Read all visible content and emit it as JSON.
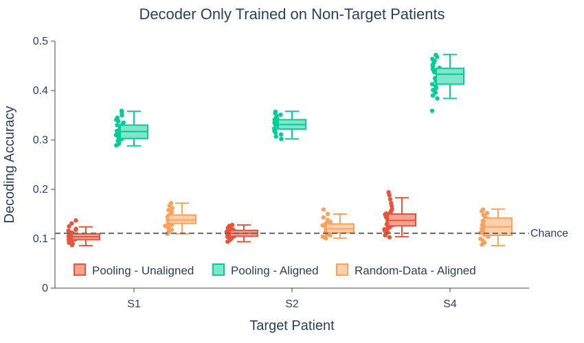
{
  "chart_data": {
    "type": "box",
    "title": "Decoder Only Trained on Non-Target Patients",
    "xlabel": "Target Patient",
    "ylabel": "Decoding Accuracy",
    "categories": [
      "S1",
      "S2",
      "S4"
    ],
    "ylim": [
      0,
      0.5
    ],
    "yticks": [
      "0",
      "0.1",
      "0.2",
      "0.3",
      "0.4",
      "0.5"
    ],
    "grid": false,
    "legend_position": "bottom-left inside, horizontal",
    "series": [
      {
        "name": "Pooling - Unaligned",
        "color": "#e8533a",
        "fill": "#f3a394",
        "boxes": [
          {
            "min": 0.086,
            "q1": 0.098,
            "median": 0.104,
            "q3": 0.11,
            "max": 0.124
          },
          {
            "min": 0.094,
            "q1": 0.105,
            "median": 0.111,
            "q3": 0.117,
            "max": 0.128
          },
          {
            "min": 0.104,
            "q1": 0.126,
            "median": 0.137,
            "q3": 0.15,
            "max": 0.183
          }
        ],
        "points": [
          [
            0.087,
            0.09,
            0.092,
            0.094,
            0.095,
            0.097,
            0.098,
            0.099,
            0.1,
            0.101,
            0.102,
            0.103,
            0.104,
            0.105,
            0.106,
            0.107,
            0.108,
            0.109,
            0.11,
            0.112,
            0.114,
            0.116,
            0.118,
            0.12,
            0.125,
            0.131,
            0.137
          ],
          [
            0.094,
            0.097,
            0.099,
            0.101,
            0.103,
            0.104,
            0.105,
            0.106,
            0.107,
            0.108,
            0.109,
            0.11,
            0.111,
            0.112,
            0.113,
            0.114,
            0.115,
            0.116,
            0.118,
            0.12,
            0.122,
            0.124,
            0.126,
            0.128
          ],
          [
            0.103,
            0.107,
            0.11,
            0.113,
            0.116,
            0.119,
            0.121,
            0.123,
            0.125,
            0.127,
            0.129,
            0.131,
            0.133,
            0.135,
            0.137,
            0.139,
            0.141,
            0.143,
            0.145,
            0.147,
            0.149,
            0.151,
            0.153,
            0.156,
            0.16,
            0.166,
            0.172,
            0.18,
            0.188,
            0.194
          ]
        ]
      },
      {
        "name": "Pooling - Aligned",
        "color": "#00cc96",
        "fill": "#80e5ca",
        "boxes": [
          {
            "min": 0.288,
            "q1": 0.303,
            "median": 0.317,
            "q3": 0.33,
            "max": 0.358
          },
          {
            "min": 0.302,
            "q1": 0.322,
            "median": 0.331,
            "q3": 0.341,
            "max": 0.358
          },
          {
            "min": 0.384,
            "q1": 0.413,
            "median": 0.433,
            "q3": 0.445,
            "max": 0.473
          }
        ],
        "points": [
          [
            0.289,
            0.292,
            0.295,
            0.298,
            0.3,
            0.302,
            0.304,
            0.306,
            0.308,
            0.31,
            0.312,
            0.314,
            0.316,
            0.318,
            0.32,
            0.322,
            0.324,
            0.326,
            0.328,
            0.33,
            0.332,
            0.335,
            0.338,
            0.341,
            0.345,
            0.35,
            0.355,
            0.359
          ],
          [
            0.302,
            0.307,
            0.311,
            0.315,
            0.318,
            0.321,
            0.323,
            0.325,
            0.327,
            0.329,
            0.331,
            0.333,
            0.335,
            0.337,
            0.339,
            0.341,
            0.343,
            0.345,
            0.348,
            0.351,
            0.354,
            0.357
          ],
          [
            0.359,
            0.384,
            0.39,
            0.396,
            0.401,
            0.405,
            0.409,
            0.413,
            0.416,
            0.419,
            0.422,
            0.425,
            0.428,
            0.431,
            0.434,
            0.437,
            0.44,
            0.443,
            0.446,
            0.449,
            0.452,
            0.456,
            0.46,
            0.464,
            0.468,
            0.472
          ]
        ]
      },
      {
        "name": "Random-Data - Aligned",
        "color": "#ffa15a",
        "fill": "#ffd0ad",
        "boxes": [
          {
            "min": 0.11,
            "q1": 0.131,
            "median": 0.138,
            "q3": 0.148,
            "max": 0.172
          },
          {
            "min": 0.101,
            "q1": 0.112,
            "median": 0.12,
            "q3": 0.13,
            "max": 0.15
          },
          {
            "min": 0.086,
            "q1": 0.107,
            "median": 0.124,
            "q3": 0.142,
            "max": 0.16
          }
        ],
        "points": [
          [
            0.11,
            0.114,
            0.118,
            0.121,
            0.124,
            0.126,
            0.128,
            0.13,
            0.132,
            0.134,
            0.136,
            0.138,
            0.14,
            0.142,
            0.144,
            0.146,
            0.148,
            0.151,
            0.154,
            0.158,
            0.162,
            0.167,
            0.172
          ],
          [
            0.101,
            0.104,
            0.107,
            0.109,
            0.111,
            0.113,
            0.115,
            0.117,
            0.119,
            0.121,
            0.123,
            0.125,
            0.127,
            0.129,
            0.131,
            0.134,
            0.138,
            0.143,
            0.15,
            0.159
          ],
          [
            0.088,
            0.092,
            0.096,
            0.1,
            0.104,
            0.108,
            0.112,
            0.116,
            0.12,
            0.124,
            0.128,
            0.132,
            0.136,
            0.14,
            0.144,
            0.148,
            0.152,
            0.156,
            0.159
          ]
        ]
      }
    ],
    "reference_line": {
      "label": "Chance",
      "value": 0.111,
      "color": "#666666",
      "style": "dashed"
    }
  }
}
